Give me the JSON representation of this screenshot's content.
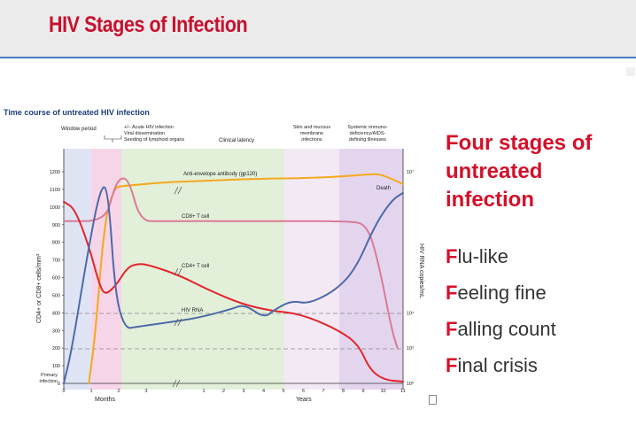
{
  "slide": {
    "title": "HIV Stages of Infection",
    "side_heading": "Four stages of untreated infection",
    "stages": [
      {
        "first": "F",
        "rest": "lu-like"
      },
      {
        "first": "F",
        "rest": "eeling fine"
      },
      {
        "first": "F",
        "rest": "alling count"
      },
      {
        "first": "F",
        "rest": "inal crisis"
      }
    ]
  },
  "colors": {
    "title_red": "#c8102e",
    "antibody": "#f4a81c",
    "cd8": "#d97a97",
    "cd4": "#e3242b",
    "rna": "#4d6aa8"
  },
  "chart_data": {
    "type": "line",
    "title": "Time course of untreated HIV infection",
    "phase_labels": {
      "window": "Window period",
      "acute": [
        "+/– Acute HIV infection",
        "Viral dissemination",
        "Seeding of lymphoid organs"
      ],
      "latency": "Clinical latency",
      "skin": [
        "Skin and mucous",
        "membrane",
        "infections"
      ],
      "aids": [
        "Systemic immuno-",
        "deficiency/AIDS-",
        "defining illnesses"
      ]
    },
    "ylabel": "CD4+ or CD8+ cells/mm³",
    "y2label": "HIV RNA copies/mL",
    "y_ticks": [
      "1200",
      "1100",
      "1000",
      "900",
      "800",
      "700",
      "600",
      "500",
      "400",
      "300",
      "200",
      "100",
      "0"
    ],
    "y2_ticks": [
      "10⁷",
      "10⁴",
      "10³",
      "10⁰"
    ],
    "x_ticks_months": [
      "0",
      "1",
      "2",
      "3"
    ],
    "x_ticks_years": [
      "1",
      "2",
      "3",
      "4",
      "5",
      "6",
      "7",
      "8",
      "9",
      "10",
      "11"
    ],
    "xlabel_months": "Months",
    "xlabel_years": "Years",
    "primary_infection": [
      "Primary",
      "infection"
    ],
    "series": [
      {
        "name": "Anti-envelope antibody (gp120)",
        "color_key": "antibody",
        "points": [
          [
            0.9,
            0
          ],
          [
            1.15,
            300
          ],
          [
            1.45,
            900
          ],
          [
            1.8,
            1110
          ],
          [
            2.15,
            1120
          ],
          [
            2.6,
            1125
          ],
          [
            3.6,
            1140
          ],
          [
            5.2,
            1150
          ],
          [
            6.8,
            1160
          ],
          [
            9.0,
            1165
          ],
          [
            10.6,
            1180
          ],
          [
            11.3,
            1190
          ],
          [
            11.8,
            1160
          ],
          [
            12.2,
            1130
          ]
        ]
      },
      {
        "name": "CD8+ T cell",
        "color_key": "cd8",
        "points": [
          [
            0,
            920
          ],
          [
            1.5,
            920
          ],
          [
            1.8,
            1100
          ],
          [
            2.05,
            1170
          ],
          [
            2.35,
            1150
          ],
          [
            2.75,
            920
          ],
          [
            3.5,
            920
          ],
          [
            6.0,
            920
          ],
          [
            8.0,
            920
          ],
          [
            10.3,
            920
          ],
          [
            10.9,
            900
          ],
          [
            11.3,
            700
          ],
          [
            11.8,
            300
          ],
          [
            12.0,
            200
          ]
        ]
      },
      {
        "name": "CD4+ T cell",
        "color_key": "cd4",
        "points": [
          [
            0,
            1030
          ],
          [
            0.4,
            990
          ],
          [
            0.9,
            780
          ],
          [
            1.3,
            550
          ],
          [
            1.5,
            500
          ],
          [
            1.9,
            560
          ],
          [
            2.3,
            660
          ],
          [
            2.7,
            680
          ],
          [
            3.1,
            670
          ],
          [
            4.2,
            610
          ],
          [
            5.2,
            530
          ],
          [
            6.4,
            450
          ],
          [
            7.5,
            410
          ],
          [
            8.2,
            400
          ],
          [
            8.9,
            370
          ],
          [
            9.9,
            300
          ],
          [
            10.6,
            220
          ],
          [
            11.0,
            80
          ],
          [
            11.5,
            20
          ],
          [
            12.2,
            10
          ]
        ]
      },
      {
        "name": "HIV RNA",
        "color_key": "rna",
        "points": [
          [
            0,
            0
          ],
          [
            0.3,
            200
          ],
          [
            0.9,
            780
          ],
          [
            1.35,
            1130
          ],
          [
            1.6,
            1090
          ],
          [
            1.85,
            500
          ],
          [
            2.2,
            310
          ],
          [
            2.6,
            320
          ],
          [
            3.5,
            340
          ],
          [
            4.8,
            370
          ],
          [
            6.0,
            420
          ],
          [
            6.5,
            450
          ],
          [
            7.2,
            370
          ],
          [
            7.6,
            420
          ],
          [
            8.2,
            470
          ],
          [
            8.8,
            450
          ],
          [
            9.8,
            530
          ],
          [
            10.5,
            650
          ],
          [
            11.2,
            900
          ],
          [
            11.8,
            1040
          ],
          [
            12.2,
            1080
          ]
        ]
      }
    ],
    "annotations": {
      "death": "Death"
    }
  }
}
